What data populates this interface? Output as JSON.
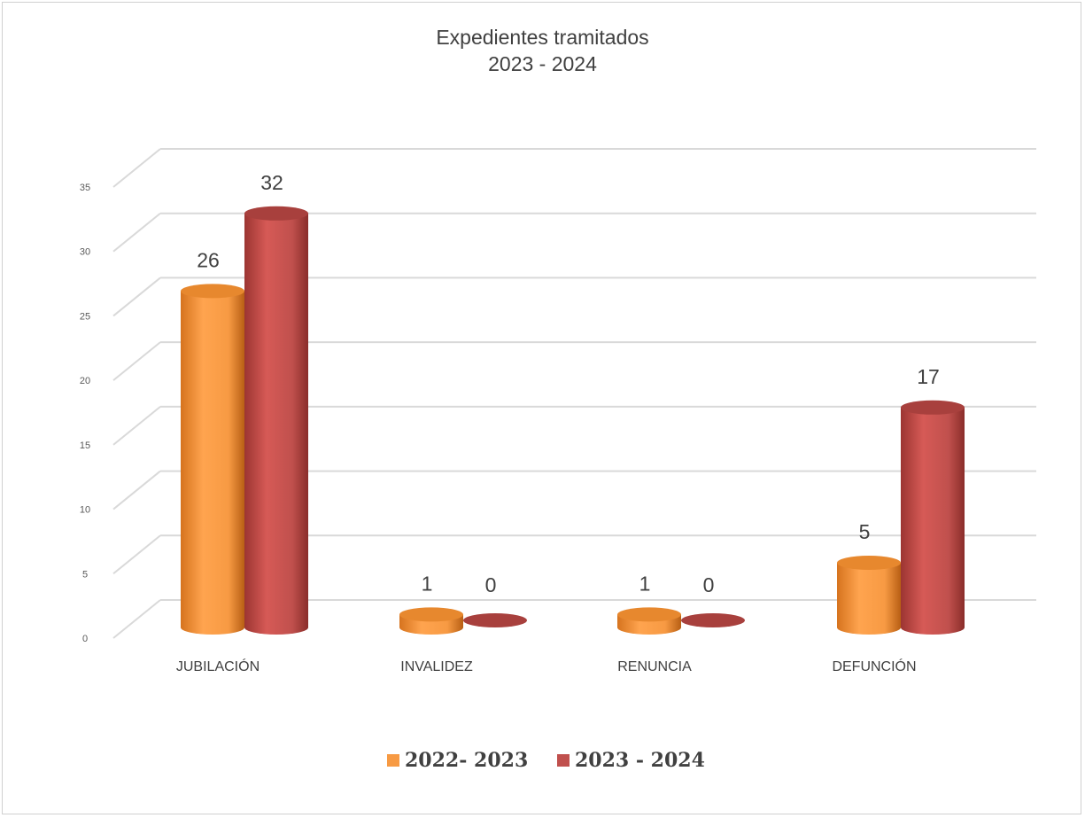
{
  "chart_data": {
    "type": "bar",
    "title": [
      "Expedientes tramitados",
      "2023 - 2024"
    ],
    "categories": [
      "JUBILACIÓN",
      "INVALIDEZ",
      "RENUNCIA",
      "DEFUNCIÓN"
    ],
    "series": [
      {
        "name": "2022- 2023",
        "values": [
          26,
          1,
          1,
          5
        ],
        "color": "#f79a43"
      },
      {
        "name": "2023 - 2024",
        "values": [
          32,
          0,
          0,
          17
        ],
        "color": "#c0504d"
      }
    ],
    "yticks": [
      "0",
      "5",
      "10",
      "15",
      "20",
      "25",
      "30",
      "35"
    ],
    "ylim": [
      0,
      35
    ],
    "grid": true,
    "legend": "bottom",
    "bar_style": "3d-cylinder"
  }
}
